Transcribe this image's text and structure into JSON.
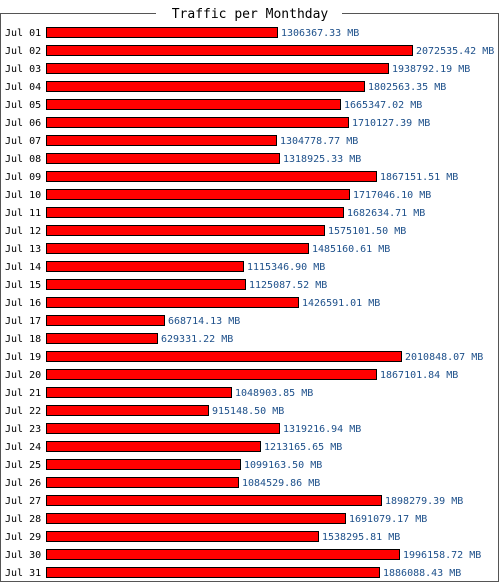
{
  "chart_data": {
    "type": "bar",
    "orientation": "horizontal",
    "title": "Traffic per Monthday",
    "unit": "MB",
    "categories": [
      "Jul 01",
      "Jul 02",
      "Jul 03",
      "Jul 04",
      "Jul 05",
      "Jul 06",
      "Jul 07",
      "Jul 08",
      "Jul 09",
      "Jul 10",
      "Jul 11",
      "Jul 12",
      "Jul 13",
      "Jul 14",
      "Jul 15",
      "Jul 16",
      "Jul 17",
      "Jul 18",
      "Jul 19",
      "Jul 20",
      "Jul 21",
      "Jul 22",
      "Jul 23",
      "Jul 24",
      "Jul 25",
      "Jul 26",
      "Jul 27",
      "Jul 28",
      "Jul 29",
      "Jul 30",
      "Jul 31"
    ],
    "values": [
      1306367.33,
      2072535.42,
      1938792.19,
      1802563.35,
      1665347.02,
      1710127.39,
      1304778.77,
      1318925.33,
      1867151.51,
      1717046.1,
      1682634.71,
      1575101.5,
      1485160.61,
      1115346.9,
      1125087.52,
      1426591.01,
      668714.13,
      629331.22,
      2010848.07,
      1867101.84,
      1048903.85,
      915148.5,
      1319216.94,
      1213165.65,
      1099163.5,
      1084529.86,
      1898279.39,
      1691079.17,
      1538295.81,
      1996158.72,
      1886088.43
    ],
    "value_labels": [
      "1306367.33 MB",
      "2072535.42 MB",
      "1938792.19 MB",
      "1802563.35 MB",
      "1665347.02 MB",
      "1710127.39 MB",
      "1304778.77 MB",
      "1318925.33 MB",
      "1867151.51 MB",
      "1717046.10 MB",
      "1682634.71 MB",
      "1575101.50 MB",
      "1485160.61 MB",
      "1115346.90 MB",
      "1125087.52 MB",
      "1426591.01 MB",
      "668714.13 MB",
      "629331.22 MB",
      "2010848.07 MB",
      "1867101.84 MB",
      "1048903.85 MB",
      "915148.50 MB",
      "1319216.94 MB",
      "1213165.65 MB",
      "1099163.50 MB",
      "1084529.86 MB",
      "1898279.39 MB",
      "1691079.17 MB",
      "1538295.81 MB",
      "1996158.72 MB",
      "1886088.43 MB"
    ],
    "colors": {
      "bar": "#ff0000",
      "bar_border": "#000000",
      "value_label": "#1c4f8a",
      "frame": "#555555"
    },
    "grid": false,
    "legend": "none"
  }
}
